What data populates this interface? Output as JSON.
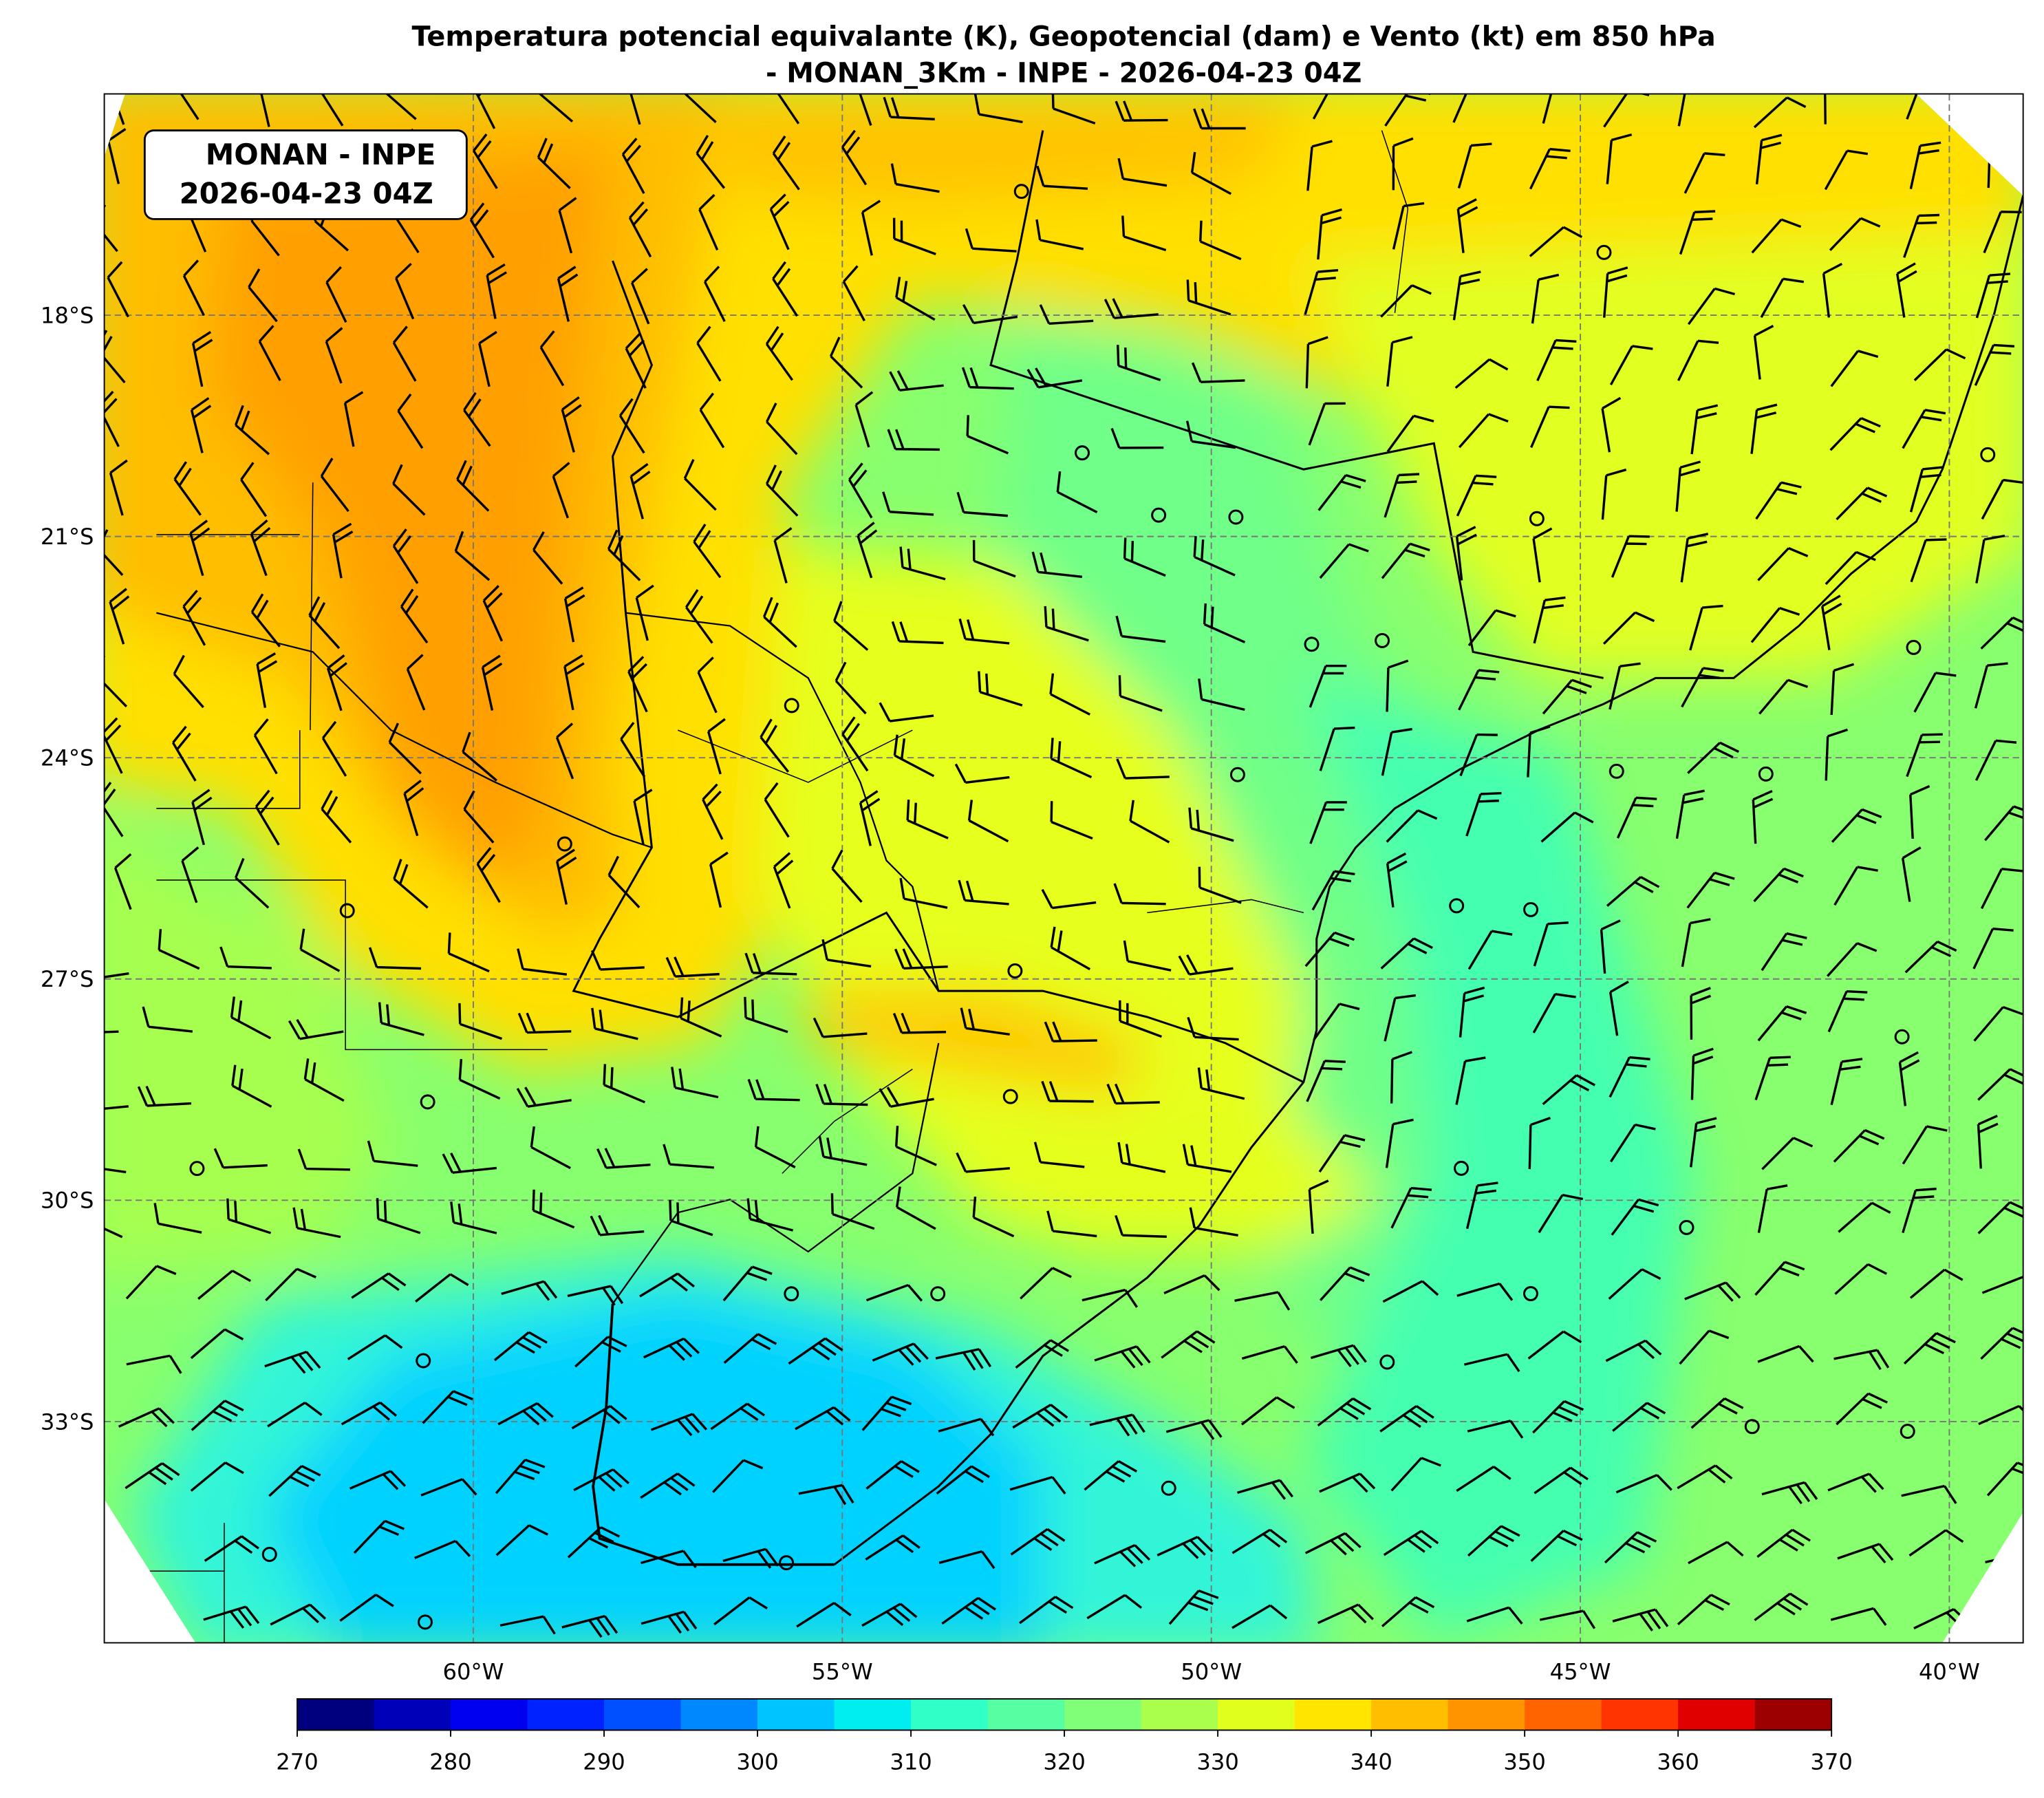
{
  "title_lines": [
    "Temperatura potencial equivalante (K), Geopotencial (dam) e Vento (kt) em 850 hPa",
    "- MONAN_3Km - INPE - 2026-04-23 04Z"
  ],
  "label_lines": [
    "MONAN - INPE",
    "2026-04-23 04Z"
  ],
  "lon_range": [
    -65,
    -39
  ],
  "lat_range": [
    -36,
    -15
  ],
  "lon_ticks": [
    {
      "value": -60,
      "label": "60°W"
    },
    {
      "value": -55,
      "label": "55°W"
    },
    {
      "value": -50,
      "label": "50°W"
    },
    {
      "value": -45,
      "label": "45°W"
    },
    {
      "value": -40,
      "label": "40°W"
    }
  ],
  "lat_ticks": [
    {
      "value": -18,
      "label": "18°S"
    },
    {
      "value": -21,
      "label": "21°S"
    },
    {
      "value": -24,
      "label": "24°S"
    },
    {
      "value": -27,
      "label": "27°S"
    },
    {
      "value": -30,
      "label": "30°S"
    },
    {
      "value": -33,
      "label": "33°S"
    }
  ],
  "colorbar": {
    "bounds": [
      270,
      275,
      280,
      285,
      290,
      295,
      300,
      305,
      310,
      315,
      320,
      325,
      330,
      335,
      340,
      345,
      350,
      355,
      360,
      365,
      370
    ],
    "colors": [
      "#00007f",
      "#0000b8",
      "#0000f0",
      "#0022ff",
      "#0050ff",
      "#0088ff",
      "#00c4ff",
      "#00eef0",
      "#30ffc8",
      "#55ffa2",
      "#80ff78",
      "#aaff4c",
      "#e0ff1c",
      "#ffe500",
      "#ffbf00",
      "#ff9400",
      "#ff6400",
      "#ff3400",
      "#e00000",
      "#9c0000"
    ],
    "ticks": [
      270,
      280,
      290,
      300,
      310,
      320,
      330,
      340,
      350,
      360,
      370
    ]
  }
}
